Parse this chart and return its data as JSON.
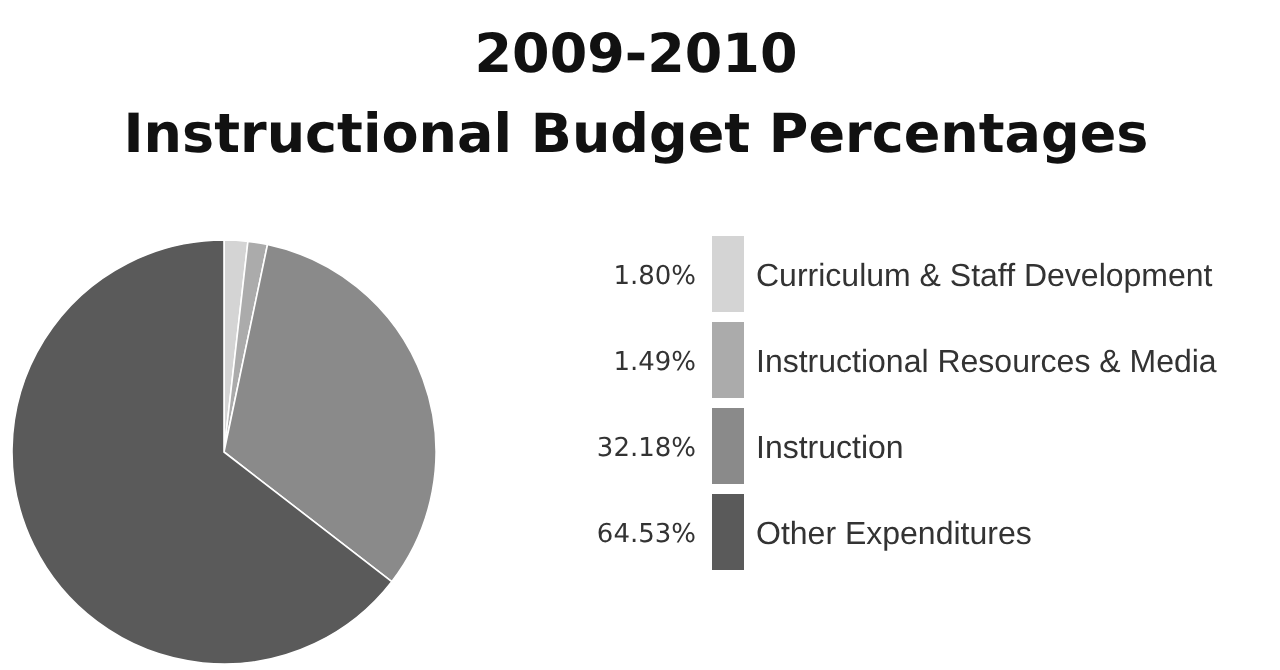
{
  "chart_data": {
    "type": "pie",
    "title": "2009-2010",
    "subtitle": "Instructional Budget Percentages",
    "categories": [
      "Curriculum & Staff Development",
      "Instructional Resources & Media",
      "Instruction",
      "Other Expenditures"
    ],
    "values": [
      1.8,
      1.49,
      32.18,
      64.53
    ],
    "value_labels": [
      "1.80%",
      "1.49%",
      "32.18%",
      "64.53%"
    ],
    "colors": [
      "#d4d4d4",
      "#ababab",
      "#8a8a8a",
      "#5a5a5a"
    ],
    "legend": "right"
  }
}
